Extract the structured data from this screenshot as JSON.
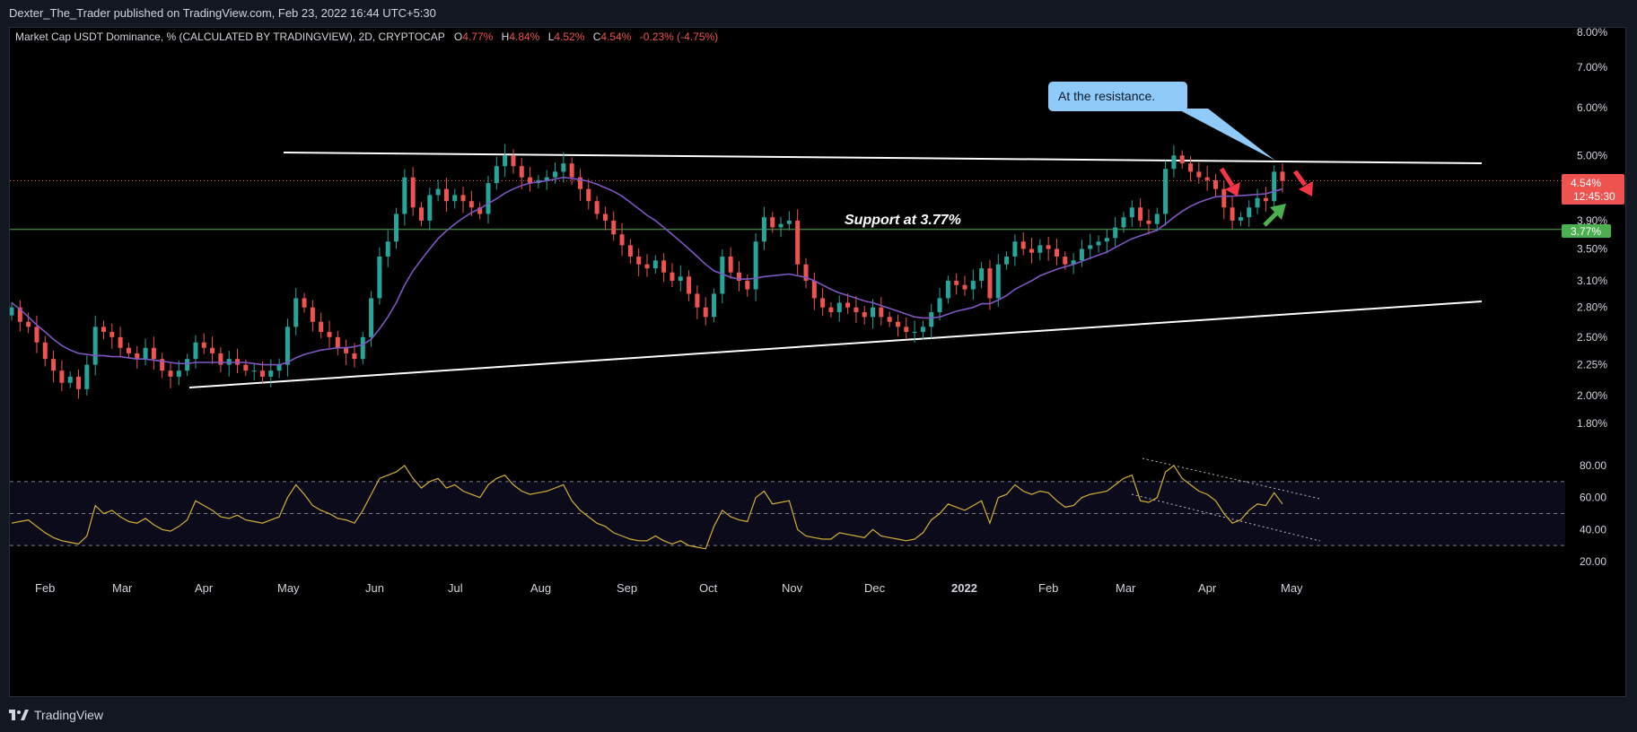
{
  "header": {
    "published": "Dexter_The_Trader published on TradingView.com, Feb 23, 2022 16:44 UTC+5:30"
  },
  "legend": {
    "title": "Market Cap USDT Dominance, % (CALCULATED BY TRADINGVIEW), 2D, CRYPTOCAP",
    "o_label": "O",
    "o_value": "4.77%",
    "h_label": "H",
    "h_value": "4.84%",
    "l_label": "L",
    "l_value": "4.52%",
    "c_label": "C",
    "c_value": "4.54%",
    "change": "-0.23% (-4.75%)"
  },
  "footer": {
    "brand": "TradingView",
    "logo_icon": "tradingview-logo-icon"
  },
  "colors": {
    "up": "#26a69a",
    "down": "#ef5350",
    "ma": "#7e57c2",
    "rsi": "#d4af37",
    "support": "#4caf50",
    "callout_bg": "#90caf9",
    "price_label": "#ef5350",
    "support_label": "#4caf50"
  },
  "annotations": {
    "callout": "At the resistance.",
    "support_text": "Support at 3.77%",
    "price_tag": "4.54%",
    "countdown": "12:45:30",
    "support_tag": "3.77%"
  },
  "chart_data": [
    {
      "type": "candlestick",
      "name": "price",
      "x_ticks": [
        "Feb",
        "Mar",
        "Apr",
        "May",
        "Jun",
        "Jul",
        "Aug",
        "Sep",
        "Oct",
        "Nov",
        "Dec",
        "2022",
        "Feb",
        "Mar",
        "Apr",
        "May"
      ],
      "y_ticks": [
        "8.00%",
        "7.00%",
        "6.00%",
        "5.00%",
        "3.90%",
        "3.50%",
        "3.10%",
        "2.80%",
        "2.50%",
        "2.25%",
        "2.00%",
        "1.80%"
      ],
      "y_scale": "log",
      "ylim": [
        1.6,
        8.2
      ],
      "last_close": 4.54,
      "support_level": 3.77,
      "close_series": [
        2.8,
        2.65,
        2.6,
        2.45,
        2.3,
        2.2,
        2.1,
        2.15,
        2.05,
        2.25,
        2.6,
        2.55,
        2.5,
        2.4,
        2.35,
        2.3,
        2.4,
        2.3,
        2.2,
        2.15,
        2.2,
        2.3,
        2.45,
        2.4,
        2.35,
        2.25,
        2.3,
        2.25,
        2.2,
        2.2,
        2.15,
        2.2,
        2.25,
        2.6,
        2.9,
        2.8,
        2.65,
        2.55,
        2.5,
        2.4,
        2.35,
        2.3,
        2.5,
        2.9,
        3.4,
        3.6,
        4.0,
        4.6,
        4.1,
        3.9,
        4.3,
        4.4,
        4.2,
        4.3,
        4.2,
        4.1,
        4.0,
        4.5,
        4.8,
        5.0,
        4.8,
        4.6,
        4.5,
        4.55,
        4.6,
        4.7,
        4.85,
        4.6,
        4.4,
        4.2,
        4.0,
        3.9,
        3.7,
        3.55,
        3.4,
        3.3,
        3.25,
        3.35,
        3.2,
        3.1,
        3.15,
        2.95,
        2.8,
        2.7,
        2.95,
        3.4,
        3.2,
        3.1,
        3.0,
        3.6,
        3.95,
        3.8,
        3.85,
        3.9,
        3.3,
        3.1,
        2.9,
        2.8,
        2.75,
        2.85,
        2.8,
        2.75,
        2.7,
        2.8,
        2.7,
        2.65,
        2.6,
        2.55,
        2.55,
        2.6,
        2.75,
        2.9,
        3.1,
        3.05,
        3.0,
        3.1,
        3.25,
        2.9,
        3.3,
        3.4,
        3.6,
        3.5,
        3.45,
        3.55,
        3.5,
        3.4,
        3.3,
        3.35,
        3.5,
        3.55,
        3.6,
        3.65,
        3.8,
        3.95,
        4.1,
        3.9,
        3.85,
        4.0,
        4.75,
        5.0,
        4.85,
        4.7,
        4.6,
        4.55,
        4.4,
        4.1,
        3.9,
        3.95,
        4.1,
        4.25,
        4.2,
        4.7,
        4.54
      ],
      "ma_series": [
        2.85,
        2.78,
        2.7,
        2.62,
        2.55,
        2.48,
        2.42,
        2.38,
        2.35,
        2.34,
        2.33,
        2.33,
        2.32,
        2.32,
        2.31,
        2.3,
        2.3,
        2.29,
        2.28,
        2.27,
        2.26,
        2.26,
        2.27,
        2.27,
        2.27,
        2.27,
        2.27,
        2.27,
        2.27,
        2.26,
        2.25,
        2.25,
        2.25,
        2.27,
        2.31,
        2.34,
        2.36,
        2.38,
        2.39,
        2.4,
        2.4,
        2.41,
        2.43,
        2.48,
        2.58,
        2.7,
        2.85,
        3.05,
        3.22,
        3.36,
        3.5,
        3.64,
        3.75,
        3.85,
        3.94,
        4.02,
        4.08,
        4.16,
        4.24,
        4.33,
        4.4,
        4.46,
        4.5,
        4.52,
        4.54,
        4.57,
        4.6,
        4.58,
        4.56,
        4.53,
        4.48,
        4.42,
        4.36,
        4.28,
        4.18,
        4.08,
        3.98,
        3.9,
        3.8,
        3.7,
        3.6,
        3.5,
        3.4,
        3.3,
        3.22,
        3.18,
        3.14,
        3.12,
        3.12,
        3.13,
        3.15,
        3.16,
        3.17,
        3.18,
        3.16,
        3.14,
        3.1,
        3.05,
        3.0,
        2.96,
        2.93,
        2.9,
        2.87,
        2.85,
        2.82,
        2.79,
        2.76,
        2.73,
        2.7,
        2.69,
        2.69,
        2.7,
        2.73,
        2.76,
        2.78,
        2.8,
        2.84,
        2.84,
        2.88,
        2.93,
        3.0,
        3.05,
        3.1,
        3.16,
        3.2,
        3.24,
        3.27,
        3.3,
        3.34,
        3.38,
        3.42,
        3.46,
        3.52,
        3.58,
        3.64,
        3.68,
        3.72,
        3.76,
        3.85,
        3.95,
        4.04,
        4.12,
        4.18,
        4.23,
        4.27,
        4.28,
        4.28,
        4.29,
        4.3,
        4.31,
        4.32,
        4.36,
        4.4
      ]
    },
    {
      "type": "line",
      "name": "rsi",
      "y_ticks": [
        "80.00",
        "60.00",
        "40.00",
        "20.00"
      ],
      "ylim": [
        15,
        90
      ],
      "bands": [
        70,
        50,
        30
      ],
      "values": [
        44,
        45,
        46,
        42,
        38,
        35,
        33,
        32,
        31,
        36,
        55,
        50,
        52,
        48,
        45,
        44,
        47,
        43,
        40,
        39,
        42,
        46,
        58,
        55,
        52,
        48,
        47,
        49,
        46,
        45,
        44,
        46,
        48,
        60,
        68,
        62,
        55,
        52,
        50,
        47,
        46,
        44,
        52,
        62,
        72,
        74,
        76,
        80,
        72,
        66,
        70,
        72,
        66,
        68,
        64,
        62,
        60,
        68,
        72,
        74,
        68,
        64,
        62,
        63,
        64,
        66,
        68,
        58,
        52,
        48,
        44,
        42,
        38,
        36,
        34,
        33,
        33,
        36,
        33,
        31,
        33,
        30,
        29,
        28,
        42,
        52,
        48,
        46,
        45,
        60,
        64,
        56,
        57,
        58,
        40,
        36,
        35,
        34,
        34,
        38,
        37,
        36,
        35,
        40,
        36,
        35,
        34,
        33,
        34,
        38,
        46,
        50,
        56,
        54,
        52,
        55,
        58,
        44,
        60,
        62,
        68,
        64,
        62,
        64,
        63,
        58,
        54,
        55,
        60,
        62,
        63,
        64,
        68,
        72,
        74,
        58,
        57,
        60,
        76,
        80,
        72,
        68,
        64,
        62,
        58,
        50,
        44,
        46,
        52,
        56,
        55,
        63,
        56
      ]
    }
  ]
}
